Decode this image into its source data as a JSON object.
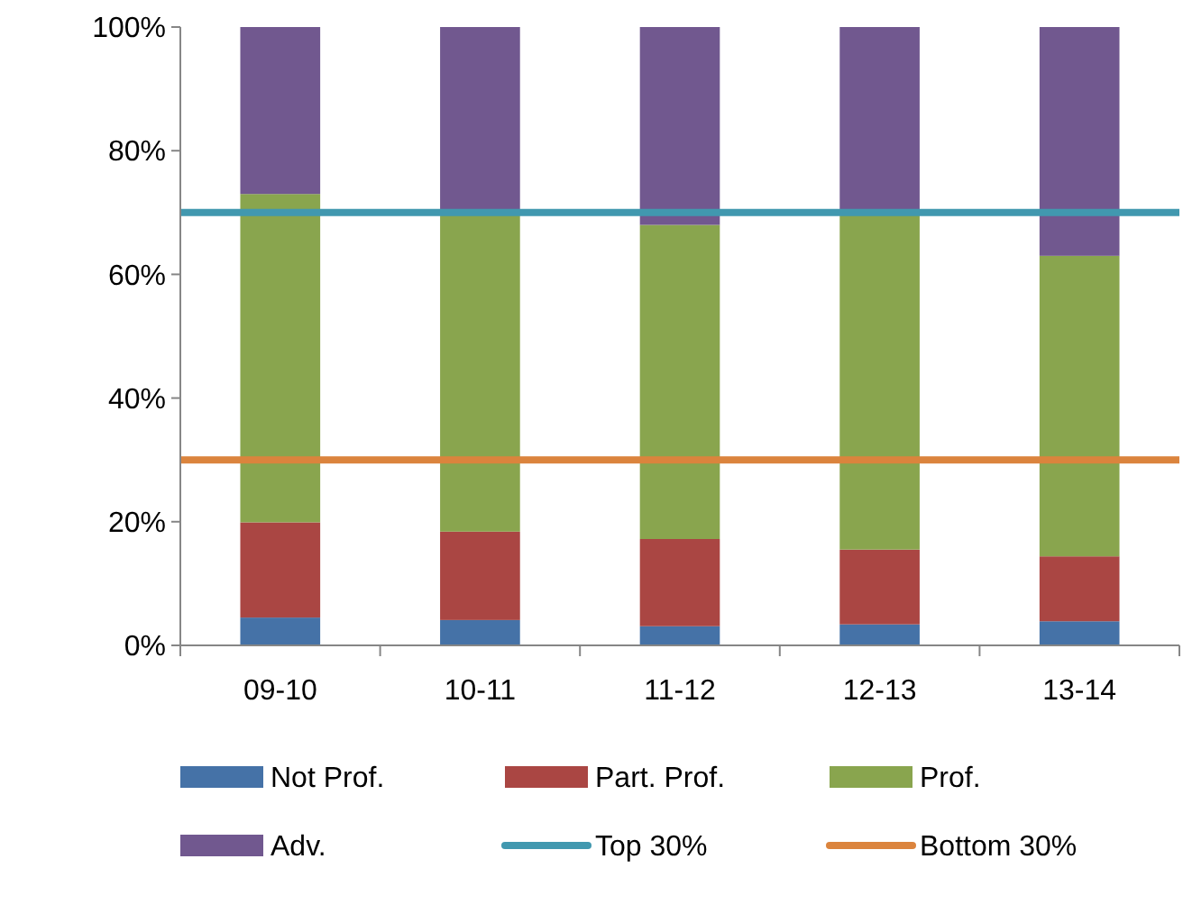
{
  "chart_data": {
    "type": "bar",
    "stacked": true,
    "categories": [
      "09-10",
      "10-11",
      "11-12",
      "12-13",
      "13-14"
    ],
    "series": [
      {
        "name": "Not Prof.",
        "color": "#4572a7",
        "values": [
          4.5,
          4.1,
          3.1,
          3.4,
          3.9
        ]
      },
      {
        "name": "Part. Prof.",
        "color": "#aa4643",
        "values": [
          15.4,
          14.3,
          14.1,
          12.1,
          10.5
        ]
      },
      {
        "name": "Prof.",
        "color": "#89a54e",
        "values": [
          53.1,
          51.6,
          50.8,
          54.5,
          48.6
        ]
      },
      {
        "name": "Adv.",
        "color": "#71588f",
        "values": [
          27,
          30,
          32,
          30,
          37
        ]
      }
    ],
    "ref_lines": [
      {
        "axis": "y",
        "value": 70,
        "label": "Top 30%",
        "color": "#4198af"
      },
      {
        "axis": "y",
        "value": 30,
        "label": "Bottom 30%",
        "color": "#db843d"
      }
    ],
    "ylim": [
      0,
      100
    ],
    "yticks": [
      {
        "value": 0,
        "label": "0%"
      },
      {
        "value": 20,
        "label": "20%"
      },
      {
        "value": 40,
        "label": "40%"
      },
      {
        "value": 60,
        "label": "60%"
      },
      {
        "value": 80,
        "label": "80%"
      },
      {
        "value": 100,
        "label": "100%"
      }
    ],
    "legend": "bottom"
  }
}
